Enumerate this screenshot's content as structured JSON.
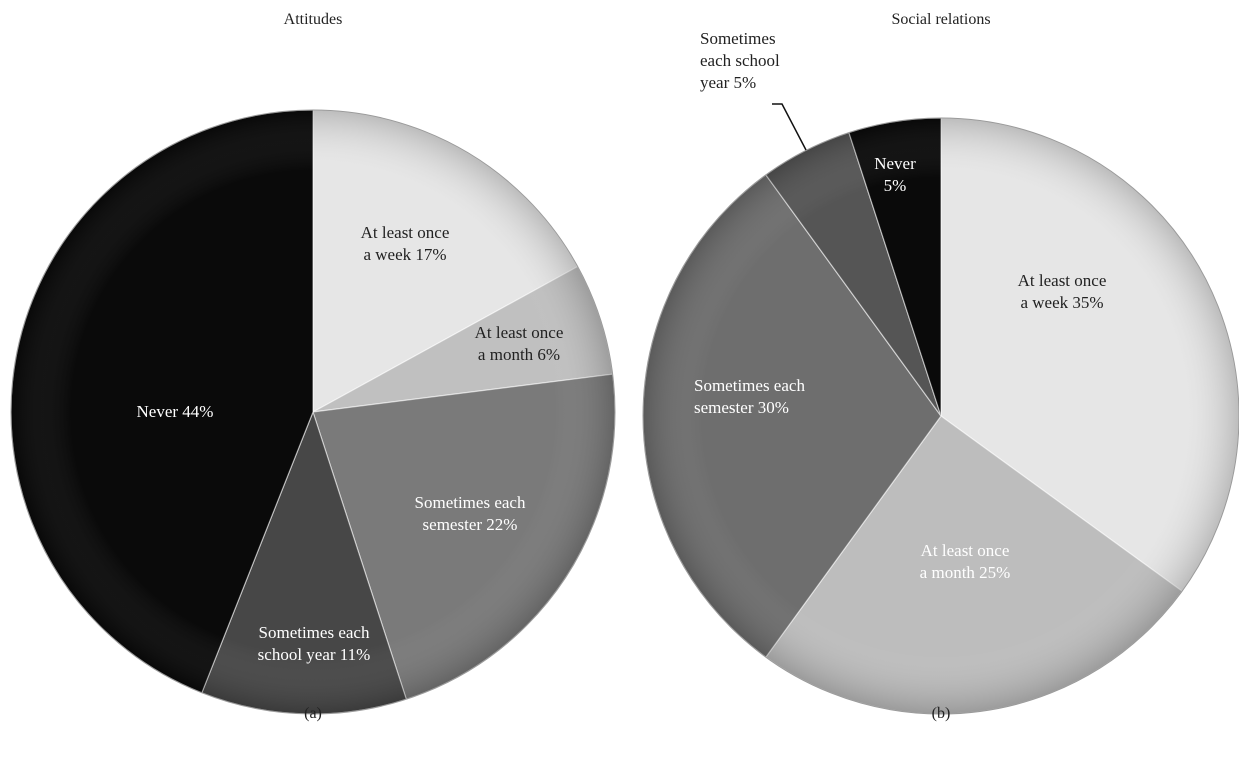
{
  "chart_data": [
    {
      "type": "pie",
      "title": "Attitudes",
      "caption": "(a)",
      "slices": [
        {
          "label": "At least once a week 17%",
          "value": 17,
          "color": "#e6e6e6",
          "text_color": "#222222"
        },
        {
          "label": "At least once a month 6%",
          "value": 6,
          "color": "#c0c0c0",
          "text_color": "#222222"
        },
        {
          "label": "Sometimes each semester 22%",
          "value": 22,
          "color": "#7a7a7a",
          "text_color": "#ffffff"
        },
        {
          "label": "Sometimes each school year 11%",
          "value": 11,
          "color": "#474747",
          "text_color": "#ffffff"
        },
        {
          "label": "Never 44%",
          "value": 44,
          "color": "#0a0a0a",
          "text_color": "#ffffff"
        }
      ]
    },
    {
      "type": "pie",
      "title": "Social relations",
      "caption": "(b)",
      "slices": [
        {
          "label": "At least once a week 35%",
          "value": 35,
          "color": "#e6e6e6",
          "text_color": "#222222"
        },
        {
          "label": "At least once a month 25%",
          "value": 25,
          "color": "#bdbdbd",
          "text_color": "#ffffff"
        },
        {
          "label": "Sometimes each semester 30%",
          "value": 30,
          "color": "#6e6e6e",
          "text_color": "#ffffff"
        },
        {
          "label": "Sometimes each school year 5%",
          "value": 5,
          "color": "#555555",
          "text_color": "#222222"
        },
        {
          "label": "Never 5%",
          "value": 5,
          "color": "#0a0a0a",
          "text_color": "#ffffff"
        }
      ]
    }
  ]
}
